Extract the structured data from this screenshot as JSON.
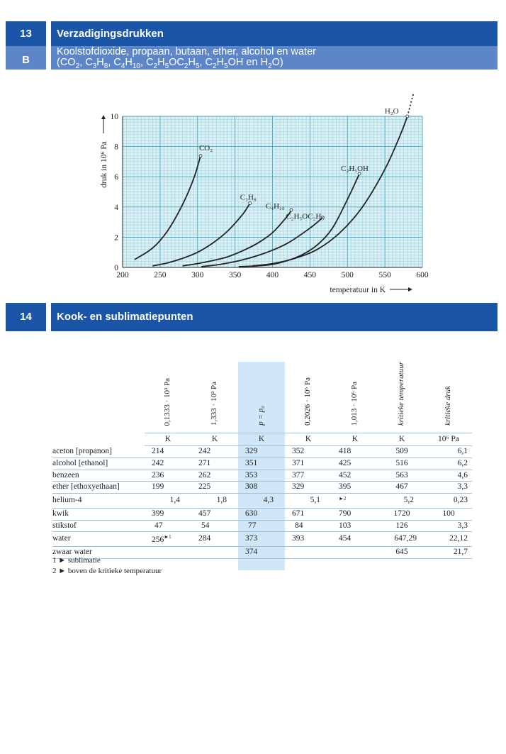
{
  "section13": {
    "number_main": "13",
    "number_sub": "B",
    "title": "Verzadigingsdrukken",
    "subtitle_line1": "Koolstofdioxide, propaan, butaan, ether, alcohol en water"
  },
  "chart_data": {
    "type": "line",
    "xlabel": "temperatuur in K",
    "ylabel": "druk in 10⁶ Pa",
    "xlim": [
      200,
      600
    ],
    "ylim": [
      0,
      10
    ],
    "xticks": [
      200,
      250,
      300,
      350,
      400,
      450,
      500,
      550,
      600
    ],
    "yticks": [
      0,
      2,
      4,
      6,
      8,
      10
    ],
    "grid": true,
    "series": [
      {
        "name": "CO₂",
        "x": [
          216,
          240,
          260,
          280,
          295,
          304
        ],
        "y": [
          0.52,
          1.28,
          2.42,
          4.16,
          5.9,
          7.38
        ]
      },
      {
        "name": "C₃H₈",
        "x": [
          240,
          260,
          280,
          300,
          320,
          340,
          360,
          370
        ],
        "y": [
          0.1,
          0.3,
          0.6,
          1.0,
          1.6,
          2.4,
          3.5,
          4.25
        ]
      },
      {
        "name": "C₄H₁₀",
        "x": [
          280,
          300,
          320,
          340,
          360,
          380,
          400,
          420,
          425
        ],
        "y": [
          0.1,
          0.25,
          0.45,
          0.7,
          1.1,
          1.6,
          2.3,
          3.4,
          3.8
        ]
      },
      {
        "name": "C₂H₅OC₂H₅",
        "x": [
          305,
          330,
          360,
          390,
          420,
          450,
          467
        ],
        "y": [
          0.05,
          0.2,
          0.5,
          0.95,
          1.6,
          2.6,
          3.3
        ]
      },
      {
        "name": "C₂H₅OH",
        "x": [
          355,
          380,
          400,
          420,
          440,
          460,
          480,
          500,
          516
        ],
        "y": [
          0.05,
          0.1,
          0.2,
          0.45,
          0.85,
          1.5,
          2.6,
          4.5,
          6.2
        ]
      },
      {
        "name": "H₂O",
        "x": [
          373,
          400,
          430,
          460,
          490,
          520,
          550,
          570,
          580,
          588
        ],
        "y": [
          0.1,
          0.25,
          0.6,
          1.2,
          2.3,
          4.0,
          6.5,
          8.7,
          10.0,
          11.5
        ]
      }
    ]
  },
  "section14": {
    "number": "14",
    "title": "Kook- en sublimatiepunten"
  },
  "table": {
    "columns": [
      "0,1333 · 10³ Pa",
      "1,333 · 10³ Pa",
      "p = p₀",
      "0,2026 · 10⁶ Pa",
      "1,013 · 10⁶ Pa",
      "kritieke temperatuur",
      "kritieke druk"
    ],
    "units": [
      "K",
      "K",
      "K",
      "K",
      "K",
      "K",
      "10⁶ Pa"
    ],
    "rows": [
      {
        "name": "aceton [propanon]",
        "values": [
          "214",
          "242",
          "329",
          "352",
          "418",
          "509",
          "6,1"
        ]
      },
      {
        "name": "alcohol [ethanol]",
        "values": [
          "242",
          "271",
          "351",
          "371",
          "425",
          "516",
          "6,2"
        ]
      },
      {
        "name": "benzeen",
        "values": [
          "236",
          "262",
          "353",
          "377",
          "452",
          "563",
          "4,6"
        ]
      },
      {
        "name": "ether [ethoxyethaan]",
        "values": [
          "199",
          "225",
          "308",
          "329",
          "395",
          "467",
          "3,3"
        ]
      },
      {
        "name": "helium-4",
        "values": [
          "1,4",
          "1,8",
          "4,3",
          "5,1",
          "",
          "5,2",
          "0,23"
        ]
      },
      {
        "name": "kwik",
        "values": [
          "399",
          "457",
          "630",
          "671",
          "790",
          "1720",
          "100"
        ]
      },
      {
        "name": "stikstof",
        "values": [
          "47",
          "54",
          "77",
          "84",
          "103",
          "126",
          "3,3"
        ]
      },
      {
        "name": "water",
        "values": [
          "256",
          "284",
          "373",
          "393",
          "454",
          "647,29",
          "22,12"
        ]
      },
      {
        "name": "zwaar water",
        "values": [
          "",
          "",
          "374",
          "",
          "",
          "645",
          "21,7"
        ]
      }
    ],
    "notes": [
      "sublimatie",
      "boven de kritieke temperatuur"
    ]
  }
}
